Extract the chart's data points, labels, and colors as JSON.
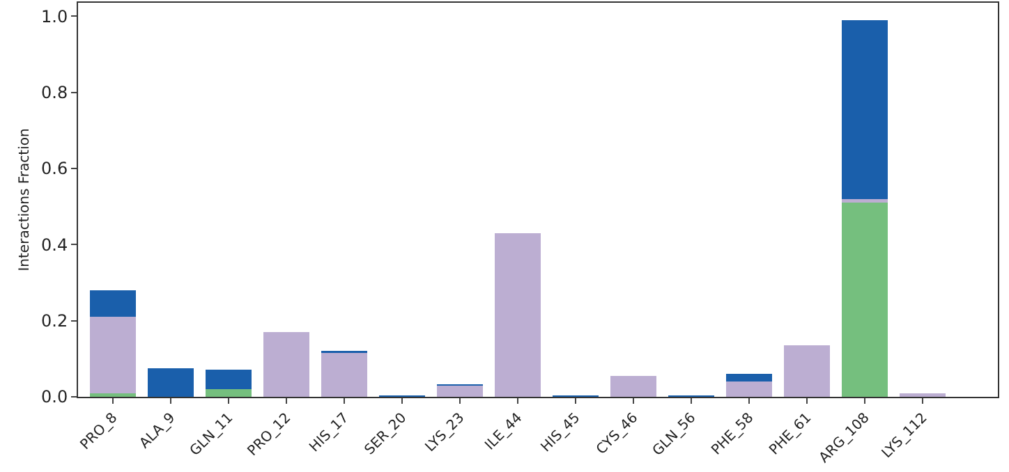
{
  "chart_data": {
    "type": "bar",
    "stacked": true,
    "ylabel": "Interactions Fraction",
    "categories": [
      "PRO_8",
      "ALA_9",
      "GLN_11",
      "PRO_12",
      "HIS_17",
      "SER_20",
      "LYS_23",
      "ILE_44",
      "HIS_45",
      "CYS_46",
      "GLN_56",
      "PHE_58",
      "PHE_61",
      "ARG_108",
      "LYS_112"
    ],
    "series": [
      {
        "color": "#75bf7e",
        "values": [
          0.01,
          0,
          0.02,
          0,
          0,
          0,
          0,
          0,
          0,
          0,
          0,
          0,
          0,
          0.51,
          0
        ]
      },
      {
        "color": "#bcaed2",
        "values": [
          0.2,
          0,
          0,
          0.17,
          0.115,
          0,
          0.03,
          0.43,
          0,
          0.055,
          0,
          0.04,
          0.135,
          0.01,
          0.01
        ]
      },
      {
        "color": "#1a5fab",
        "values": [
          0.07,
          0.075,
          0.052,
          0,
          0.005,
          0.003,
          0.003,
          0,
          0.003,
          0,
          0.003,
          0.02,
          0,
          0.47,
          0
        ]
      }
    ],
    "ylim": [
      0,
      1.035
    ],
    "yticks": [
      {
        "value": 0,
        "label": "0.0"
      },
      {
        "value": 0.2,
        "label": "0.2"
      },
      {
        "value": 0.4,
        "label": "0.4"
      },
      {
        "value": 0.6,
        "label": "0.6"
      },
      {
        "value": 0.8,
        "label": "0.8"
      },
      {
        "value": 1,
        "label": "1.0"
      }
    ],
    "grid": false,
    "legend": false
  }
}
